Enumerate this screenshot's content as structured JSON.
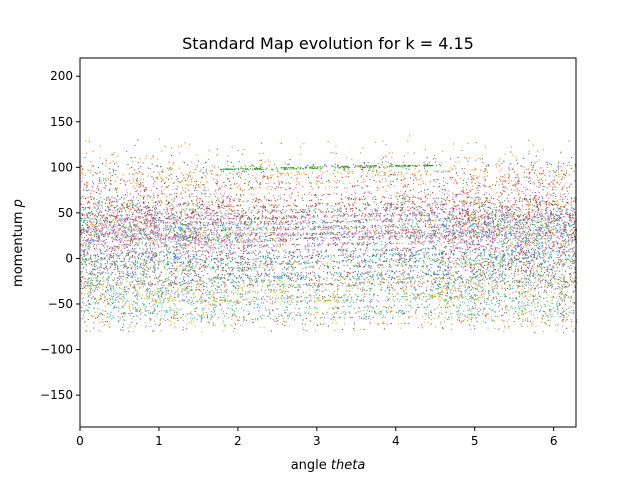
{
  "chart_data": {
    "type": "scatter",
    "title": "Standard Map evolution for k = 4.15",
    "xlabel_prefix": "angle ",
    "xlabel_var": "theta",
    "ylabel_prefix": "momentum ",
    "ylabel_var": "p",
    "xlim": [
      0,
      6.2832
    ],
    "ylim": [
      -185,
      220
    ],
    "xticks": [
      0,
      1,
      2,
      3,
      4,
      5,
      6
    ],
    "yticks": [
      -150,
      -100,
      -50,
      0,
      50,
      100,
      150,
      200
    ],
    "k": 4.15,
    "n_orbits": 10,
    "n_steps": 1300,
    "p_core": [
      -80,
      130
    ],
    "p_halo": [
      -150,
      200
    ],
    "series_colors": [
      "#1f77b4",
      "#ff7f0e",
      "#2ca02c",
      "#d62728",
      "#9467bd",
      "#8c564b",
      "#e377c2",
      "#7f7f7f",
      "#bcbd22",
      "#17becf"
    ],
    "grid": false,
    "legend": "none"
  }
}
